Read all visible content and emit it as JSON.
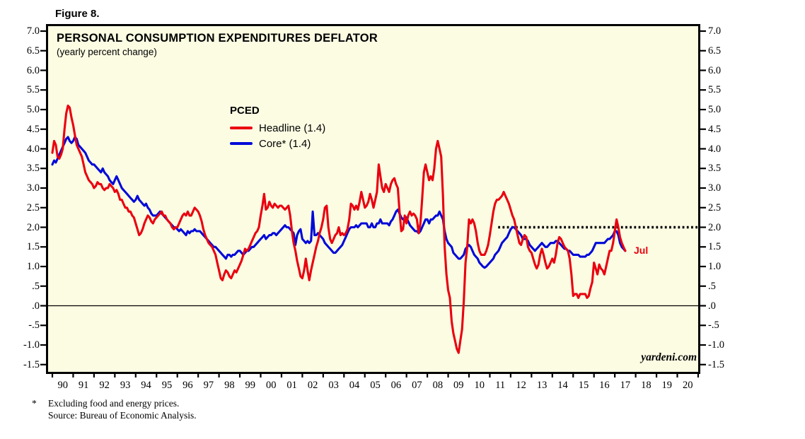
{
  "figure_label": "Figure 8.",
  "chart": {
    "title": "PERSONAL CONSUMPTION EXPENDITURES DEFLATOR",
    "subtitle": "(yearly percent change)",
    "legend": {
      "heading": "PCED",
      "items": [
        {
          "label": "Headline (1.4)",
          "color": "#ea000f"
        },
        {
          "label": "Core* (1.4)",
          "color": "#0009d8"
        }
      ]
    },
    "annotations": {
      "last_point_label": "Jul",
      "watermark": "yardeni.com"
    }
  },
  "footnotes": {
    "marker": "*",
    "line1": "Excluding food and energy prices.",
    "line2": "Source: Bureau of Economic Analysis."
  },
  "colors": {
    "plot_background": "#fcfce3",
    "frame": "#000000",
    "headline_red": "#ea000f",
    "core_blue": "#0009d8",
    "target_dotted": "#000000"
  },
  "chart_data": {
    "type": "line",
    "title": "PERSONAL CONSUMPTION EXPENDITURES DEFLATOR",
    "subtitle": "(yearly percent change)",
    "frequency": "monthly",
    "x_start_year": 1990,
    "x_end_label": "Jul 2017",
    "xlim": [
      1990,
      2021
    ],
    "ylim": [
      -1.5,
      7.0
    ],
    "grid": false,
    "legend_position": "upper-center-left",
    "y_tick_labels": [
      "7.0",
      "6.5",
      "6.0",
      "5.5",
      "5.0",
      "4.5",
      "4.0",
      "3.5",
      "3.0",
      "2.5",
      "2.0",
      "1.5",
      "1.0",
      ".5",
      ".0",
      "-.5",
      "-1.0",
      "-1.5"
    ],
    "x_tick_labels": [
      "90",
      "91",
      "92",
      "93",
      "94",
      "95",
      "96",
      "97",
      "98",
      "99",
      "00",
      "01",
      "02",
      "03",
      "04",
      "05",
      "06",
      "07",
      "08",
      "09",
      "10",
      "11",
      "12",
      "13",
      "14",
      "15",
      "16",
      "17",
      "18",
      "19",
      "20"
    ],
    "zero_line": 0.0,
    "target_line": {
      "value": 2.0,
      "x_start": 2011.4,
      "x_end": 2021,
      "style": "dotted",
      "color": "#000000"
    },
    "series": [
      {
        "name": "Headline",
        "color": "#ea000f",
        "final_value": 1.4,
        "values": [
          3.9,
          4.2,
          4.1,
          3.8,
          3.75,
          3.85,
          4.0,
          4.5,
          4.9,
          5.1,
          5.05,
          4.8,
          4.6,
          4.35,
          4.1,
          4.0,
          3.9,
          3.8,
          3.6,
          3.4,
          3.3,
          3.2,
          3.15,
          3.1,
          3.0,
          3.05,
          3.15,
          3.1,
          3.1,
          3.0,
          2.95,
          3.0,
          3.0,
          3.1,
          3.05,
          3.0,
          2.9,
          2.95,
          2.85,
          2.7,
          2.7,
          2.6,
          2.5,
          2.5,
          2.4,
          2.4,
          2.3,
          2.25,
          2.1,
          1.95,
          1.8,
          1.85,
          1.95,
          2.1,
          2.2,
          2.3,
          2.25,
          2.15,
          2.1,
          2.2,
          2.25,
          2.3,
          2.35,
          2.4,
          2.3,
          2.3,
          2.2,
          2.15,
          2.1,
          2.0,
          1.95,
          2.0,
          2.0,
          2.1,
          2.2,
          2.3,
          2.35,
          2.3,
          2.4,
          2.3,
          2.3,
          2.4,
          2.5,
          2.45,
          2.4,
          2.3,
          2.15,
          1.95,
          1.8,
          1.7,
          1.6,
          1.55,
          1.5,
          1.4,
          1.3,
          1.1,
          0.9,
          0.7,
          0.65,
          0.8,
          0.9,
          0.85,
          0.75,
          0.7,
          0.8,
          0.9,
          0.85,
          0.95,
          1.05,
          1.15,
          1.3,
          1.45,
          1.4,
          1.45,
          1.55,
          1.65,
          1.75,
          1.85,
          1.9,
          2.0,
          2.3,
          2.55,
          2.85,
          2.45,
          2.5,
          2.65,
          2.55,
          2.5,
          2.6,
          2.55,
          2.5,
          2.55,
          2.55,
          2.5,
          2.45,
          2.5,
          2.55,
          2.3,
          1.9,
          1.6,
          1.4,
          1.15,
          0.95,
          0.75,
          0.7,
          0.9,
          1.2,
          0.9,
          0.65,
          0.9,
          1.1,
          1.3,
          1.5,
          1.65,
          1.85,
          2.0,
          2.2,
          2.5,
          2.55,
          2.0,
          1.7,
          1.6,
          1.7,
          1.8,
          1.85,
          2.0,
          1.8,
          1.85,
          1.8,
          1.85,
          1.95,
          2.2,
          2.6,
          2.55,
          2.45,
          2.55,
          2.45,
          2.65,
          2.9,
          2.7,
          2.5,
          2.55,
          2.65,
          2.85,
          2.7,
          2.5,
          2.7,
          2.9,
          3.6,
          3.3,
          3.0,
          2.9,
          3.1,
          3.0,
          2.9,
          3.1,
          3.2,
          3.25,
          3.1,
          3.0,
          2.4,
          1.9,
          1.95,
          2.3,
          2.1,
          2.3,
          2.4,
          2.3,
          2.35,
          2.3,
          2.2,
          1.85,
          2.1,
          2.7,
          3.4,
          3.6,
          3.4,
          3.2,
          3.3,
          3.2,
          3.5,
          4.0,
          4.2,
          4.0,
          3.8,
          2.8,
          1.5,
          0.8,
          0.4,
          0.2,
          -0.4,
          -0.7,
          -0.9,
          -1.1,
          -1.2,
          -0.9,
          -0.6,
          0.1,
          1.1,
          1.5,
          2.2,
          2.1,
          2.2,
          2.1,
          1.9,
          1.6,
          1.4,
          1.3,
          1.3,
          1.3,
          1.4,
          1.55,
          1.8,
          2.1,
          2.4,
          2.6,
          2.7,
          2.7,
          2.75,
          2.8,
          2.9,
          2.8,
          2.7,
          2.6,
          2.45,
          2.3,
          2.2,
          2.0,
          1.8,
          1.6,
          1.55,
          1.7,
          1.8,
          1.75,
          1.5,
          1.4,
          1.35,
          1.2,
          1.05,
          0.95,
          1.05,
          1.3,
          1.45,
          1.3,
          1.1,
          0.95,
          1.0,
          1.1,
          1.2,
          1.1,
          1.3,
          1.6,
          1.75,
          1.7,
          1.6,
          1.5,
          1.45,
          1.4,
          1.2,
          0.8,
          0.25,
          0.3,
          0.3,
          0.2,
          0.3,
          0.3,
          0.3,
          0.3,
          0.2,
          0.25,
          0.45,
          0.6,
          1.1,
          0.95,
          0.8,
          1.05,
          0.95,
          0.9,
          0.8,
          1.0,
          1.2,
          1.4,
          1.4,
          1.6,
          1.9,
          2.2,
          2.0,
          1.75,
          1.6,
          1.5,
          1.4
        ]
      },
      {
        "name": "Core",
        "color": "#0009d8",
        "final_value": 1.4,
        "values": [
          3.6,
          3.7,
          3.65,
          3.75,
          3.85,
          3.95,
          4.05,
          4.15,
          4.25,
          4.3,
          4.2,
          4.15,
          4.2,
          4.3,
          4.25,
          4.1,
          4.05,
          4.0,
          3.95,
          3.9,
          3.8,
          3.7,
          3.65,
          3.6,
          3.6,
          3.55,
          3.5,
          3.45,
          3.4,
          3.5,
          3.4,
          3.35,
          3.3,
          3.2,
          3.15,
          3.1,
          3.2,
          3.3,
          3.2,
          3.1,
          3.0,
          2.95,
          2.9,
          2.85,
          2.8,
          2.75,
          2.7,
          2.65,
          2.7,
          2.8,
          2.7,
          2.65,
          2.6,
          2.55,
          2.6,
          2.5,
          2.45,
          2.35,
          2.3,
          2.3,
          2.3,
          2.35,
          2.4,
          2.35,
          2.3,
          2.25,
          2.2,
          2.15,
          2.1,
          2.05,
          2.0,
          2.0,
          1.95,
          1.9,
          1.95,
          1.9,
          1.85,
          1.8,
          1.9,
          1.85,
          1.9,
          1.9,
          1.95,
          1.9,
          1.9,
          1.9,
          1.85,
          1.8,
          1.75,
          1.7,
          1.65,
          1.6,
          1.55,
          1.5,
          1.5,
          1.45,
          1.4,
          1.35,
          1.3,
          1.25,
          1.2,
          1.3,
          1.3,
          1.25,
          1.3,
          1.3,
          1.35,
          1.4,
          1.4,
          1.35,
          1.3,
          1.35,
          1.4,
          1.4,
          1.45,
          1.5,
          1.5,
          1.55,
          1.6,
          1.65,
          1.7,
          1.75,
          1.8,
          1.7,
          1.75,
          1.8,
          1.8,
          1.85,
          1.85,
          1.8,
          1.85,
          1.9,
          1.95,
          2.0,
          2.05,
          2.0,
          2.0,
          1.95,
          1.9,
          1.85,
          1.55,
          1.8,
          1.9,
          1.95,
          1.7,
          1.65,
          1.6,
          1.65,
          1.6,
          1.65,
          2.4,
          1.8,
          1.8,
          1.85,
          1.8,
          1.75,
          1.7,
          1.6,
          1.55,
          1.5,
          1.45,
          1.4,
          1.35,
          1.35,
          1.4,
          1.45,
          1.5,
          1.55,
          1.65,
          1.75,
          1.85,
          1.95,
          2.0,
          2.0,
          2.0,
          2.05,
          2.0,
          2.05,
          2.1,
          2.1,
          2.1,
          2.1,
          2.0,
          2.0,
          2.1,
          2.0,
          2.0,
          2.1,
          2.1,
          2.2,
          2.1,
          2.1,
          2.1,
          2.1,
          2.05,
          2.15,
          2.2,
          2.3,
          2.4,
          2.45,
          2.35,
          2.25,
          2.2,
          2.25,
          2.25,
          2.15,
          2.05,
          2.0,
          1.95,
          1.9,
          1.9,
          1.85,
          1.9,
          2.0,
          2.1,
          2.2,
          2.2,
          2.1,
          2.2,
          2.2,
          2.25,
          2.3,
          2.3,
          2.4,
          2.3,
          2.2,
          1.9,
          1.7,
          1.6,
          1.55,
          1.5,
          1.35,
          1.3,
          1.25,
          1.2,
          1.2,
          1.25,
          1.3,
          1.45,
          1.5,
          1.55,
          1.5,
          1.4,
          1.3,
          1.25,
          1.2,
          1.1,
          1.05,
          1.0,
          0.97,
          1.0,
          1.05,
          1.1,
          1.15,
          1.2,
          1.3,
          1.35,
          1.4,
          1.5,
          1.6,
          1.65,
          1.7,
          1.75,
          1.85,
          1.95,
          2.0,
          2.0,
          1.95,
          1.9,
          1.85,
          1.8,
          1.7,
          1.7,
          1.7,
          1.65,
          1.55,
          1.5,
          1.45,
          1.4,
          1.45,
          1.5,
          1.55,
          1.6,
          1.55,
          1.5,
          1.5,
          1.55,
          1.6,
          1.6,
          1.6,
          1.65,
          1.65,
          1.6,
          1.55,
          1.5,
          1.45,
          1.45,
          1.4,
          1.4,
          1.35,
          1.3,
          1.3,
          1.3,
          1.3,
          1.25,
          1.25,
          1.25,
          1.25,
          1.3,
          1.3,
          1.35,
          1.4,
          1.5,
          1.6,
          1.6,
          1.6,
          1.6,
          1.6,
          1.6,
          1.65,
          1.7,
          1.7,
          1.75,
          1.8,
          1.9,
          1.9,
          1.8,
          1.6,
          1.5,
          1.45,
          1.4
        ]
      }
    ]
  }
}
